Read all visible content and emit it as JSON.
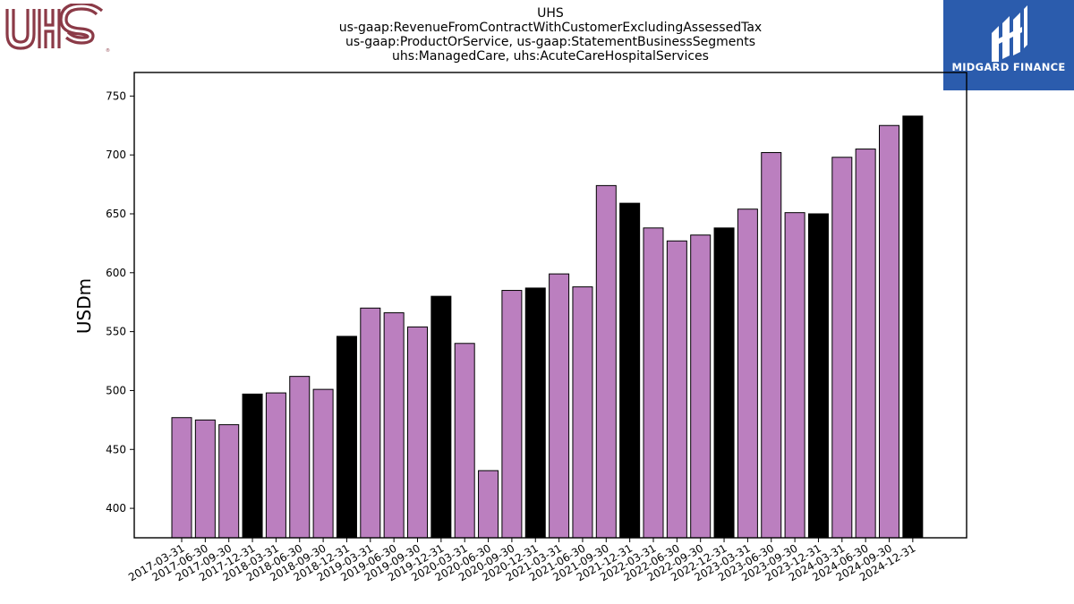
{
  "header": {
    "title_lines": [
      "UHS",
      "us-gaap:RevenueFromContractWithCustomerExcludingAssessedTax",
      "us-gaap:ProductOrService, us-gaap:StatementBusinessSegments",
      "uhs:ManagedCare, uhs:AcuteCareHospitalServices"
    ]
  },
  "logos": {
    "left": {
      "text": "UHS",
      "color": "#8b3a47"
    },
    "right": {
      "text": "MIDGARD FINANCE",
      "background": "#2b5cad"
    }
  },
  "colors": {
    "bar_regular": "#bb7fbf",
    "bar_q4": "#000000",
    "bar_edge": "#000000"
  },
  "chart_data": {
    "type": "bar",
    "title": "",
    "xlabel": "",
    "ylabel": "USDm",
    "ylim": [
      375,
      770
    ],
    "yticks": [
      400,
      450,
      500,
      550,
      600,
      650,
      700,
      750
    ],
    "grid": false,
    "categories": [
      "2017-03-31",
      "2017-06-30",
      "2017-09-30",
      "2017-12-31",
      "2018-03-31",
      "2018-06-30",
      "2018-09-30",
      "2018-12-31",
      "2019-03-31",
      "2019-06-30",
      "2019-09-30",
      "2019-12-31",
      "2020-03-31",
      "2020-06-30",
      "2020-09-30",
      "2020-12-31",
      "2021-03-31",
      "2021-06-30",
      "2021-09-30",
      "2021-12-31",
      "2022-03-31",
      "2022-06-30",
      "2022-09-30",
      "2022-12-31",
      "2023-03-31",
      "2023-06-30",
      "2023-09-30",
      "2023-12-31",
      "2024-03-31",
      "2024-06-30",
      "2024-09-30",
      "2024-12-31"
    ],
    "values": [
      477,
      475,
      471,
      497,
      498,
      512,
      501,
      546,
      570,
      566,
      554,
      580,
      540,
      432,
      585,
      587,
      599,
      588,
      674,
      659,
      638,
      627,
      632,
      638,
      654,
      702,
      651,
      650,
      698,
      705,
      725,
      733
    ]
  }
}
